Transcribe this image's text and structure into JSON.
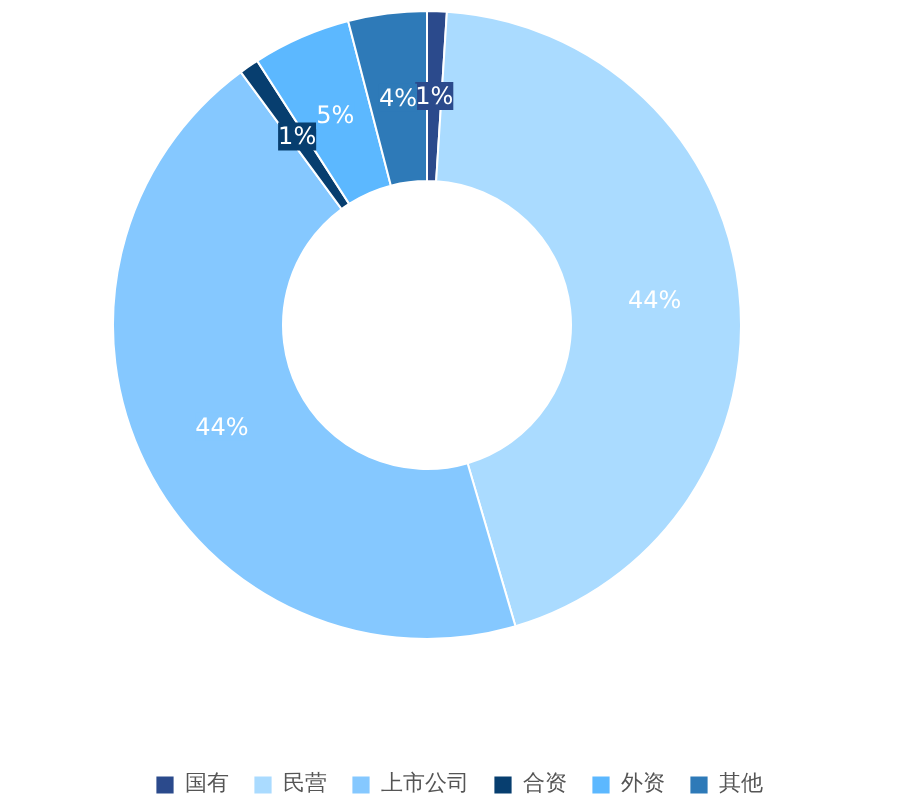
{
  "chart_data": {
    "type": "donut",
    "categories": [
      "国有",
      "民营",
      "上市公司",
      "合资",
      "外资",
      "其他"
    ],
    "values": [
      1,
      44,
      44,
      1,
      5,
      4
    ],
    "colors": [
      "#2b4a8c",
      "#aadbff",
      "#85c8ff",
      "#073e6f",
      "#5cb8ff",
      "#2e7ab8"
    ],
    "value_labels": [
      "1%",
      "44%",
      "44%",
      "1%",
      "5%",
      "4%"
    ],
    "legend": "bottom"
  }
}
